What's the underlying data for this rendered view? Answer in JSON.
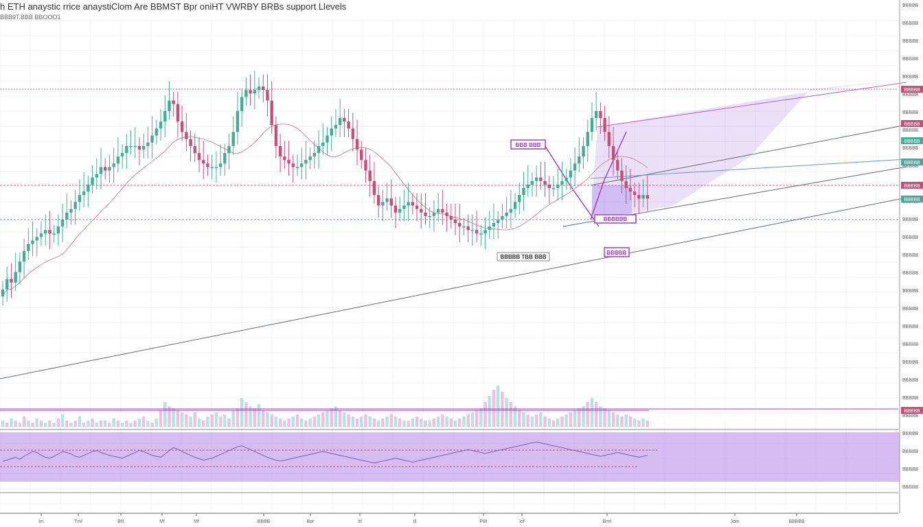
{
  "header": {
    "title": "h ETH anaystic rrice anaystiClom Are BBMST Bpr oniHT VWRBY BRBs support Llevels",
    "subtitle": "BBB9T.BBB BBOOO1"
  },
  "colors": {
    "up": "#4aa89a",
    "down": "#c4507a",
    "accent": "#a040c0",
    "zone": "#c9a5ee",
    "trend": "#606870",
    "resistance": "#d06080",
    "support": "#7090d0"
  },
  "annotations": {
    "label1": "BBB BBB",
    "label2": "BBBBB TBB BBB",
    "label3": "BBBBBB",
    "label4": "BBBBB"
  },
  "price_tags": [
    "BBBBB",
    "BBBBB",
    "BBBBB",
    "BBBBB",
    "BBBBB",
    "BBBBB",
    "BBBBB"
  ],
  "chart_data": {
    "type": "candlestick",
    "price_axis_labels": [
      "BBBBB",
      "BBBBB",
      "BBBBB",
      "BBBBB",
      "BBBBB",
      "BBBBB",
      "BBBBB",
      "BBBBB",
      "BBBBB",
      "BBBBB",
      "BBBBB",
      "BBBBB",
      "BBBBB",
      "BBBBB",
      "BBBBB",
      "BBBBB",
      "BBBBB",
      "BBBBB",
      "BBBBB",
      "BBBBB",
      "BBBBB",
      "BBBBB",
      "BBBBB",
      "BBBBB",
      "BBBBB",
      "BBBBB",
      "BBBBB",
      "BBBBB"
    ],
    "time_axis_labels": [
      "Im",
      "Tmf",
      "BN",
      "Mf",
      "Mf",
      "BBBB",
      "Bor",
      "Itf",
      "Ill",
      "PBI",
      "Iof",
      "Bmf",
      "Jom",
      "BBBBB"
    ],
    "ylim": [
      0,
      100
    ],
    "closes": [
      31,
      34,
      33,
      36,
      39,
      42,
      44,
      45,
      46,
      47,
      48,
      47,
      47,
      49,
      51,
      53,
      54,
      56,
      58,
      59,
      61,
      63,
      64,
      66,
      65,
      66,
      67,
      69,
      70,
      72,
      72,
      72,
      71,
      72,
      73,
      75,
      77,
      79,
      82,
      85,
      84,
      79,
      76,
      74,
      72,
      70,
      68,
      67,
      66,
      66,
      66,
      67,
      70,
      72,
      76,
      82,
      86,
      88,
      87,
      88,
      89,
      88,
      85,
      78,
      72,
      69,
      68,
      67,
      66,
      66,
      67,
      68,
      69,
      70,
      72,
      73,
      75,
      77,
      78,
      80,
      79,
      77,
      74,
      71,
      68,
      65,
      62,
      58,
      55,
      56,
      57,
      55,
      53,
      54,
      55,
      56,
      55,
      54,
      53,
      52,
      52,
      53,
      54,
      53,
      52,
      51,
      50,
      49,
      49,
      48,
      48,
      47,
      47,
      48,
      49,
      50,
      51,
      52,
      53,
      54,
      56,
      58,
      60,
      61,
      62,
      63,
      62,
      61,
      60,
      60,
      61,
      62,
      63,
      65,
      67,
      69,
      72,
      76,
      80,
      82,
      80,
      76,
      72,
      68,
      65,
      62,
      60,
      59,
      58,
      57,
      58,
      57
    ],
    "volumes": [
      3,
      2,
      4,
      3,
      2,
      5,
      3,
      2,
      4,
      3,
      2,
      3,
      2,
      4,
      6,
      3,
      2,
      3,
      5,
      2,
      3,
      4,
      2,
      3,
      3,
      2,
      4,
      3,
      2,
      3,
      2,
      3,
      4,
      5,
      3,
      2,
      4,
      8,
      12,
      10,
      9,
      8,
      7,
      6,
      5,
      7,
      4,
      3,
      5,
      6,
      7,
      5,
      6,
      4,
      8,
      9,
      14,
      12,
      10,
      9,
      11,
      8,
      7,
      6,
      5,
      4,
      3,
      4,
      5,
      6,
      4,
      3,
      4,
      5,
      6,
      7,
      8,
      9,
      10,
      8,
      7,
      6,
      5,
      4,
      5,
      6,
      5,
      4,
      3,
      4,
      5,
      6,
      5,
      4,
      3,
      3,
      4,
      5,
      4,
      3,
      3,
      4,
      5,
      6,
      5,
      4,
      3,
      4,
      5,
      6,
      7,
      8,
      9,
      12,
      15,
      18,
      20,
      17,
      14,
      12,
      10,
      8,
      7,
      6,
      5,
      6,
      7,
      5,
      4,
      3,
      4,
      5,
      6,
      7,
      8,
      9,
      10,
      12,
      14,
      12,
      10,
      9,
      8,
      7,
      6,
      5,
      6,
      5,
      4,
      3,
      4,
      3
    ],
    "oscillator": [
      40,
      42,
      45,
      48,
      44,
      50,
      55,
      60,
      58,
      52,
      48,
      46,
      50,
      55,
      60,
      58,
      55,
      50,
      48,
      52,
      56,
      60,
      62,
      58,
      55,
      52,
      50,
      48,
      46,
      50,
      54,
      58,
      62,
      60,
      56,
      52,
      50,
      48,
      55,
      62,
      68,
      65,
      60,
      56,
      52,
      48,
      45,
      42,
      44,
      46,
      50,
      54,
      58,
      62,
      66,
      70,
      72,
      68,
      64,
      60,
      56,
      52,
      48,
      45,
      42,
      40,
      42,
      44,
      46,
      48,
      50,
      52,
      54,
      56,
      58,
      60,
      58,
      56,
      54,
      52,
      50,
      48,
      46,
      44,
      42,
      40,
      38,
      36,
      38,
      40,
      42,
      44,
      46,
      44,
      42,
      40,
      38,
      40,
      42,
      44,
      46,
      48,
      50,
      52,
      54,
      56,
      58,
      60,
      62,
      64,
      62,
      60,
      58,
      56,
      58,
      60,
      62,
      64,
      66,
      68,
      70,
      72,
      74,
      76,
      78,
      80,
      78,
      76,
      74,
      72,
      70,
      68,
      66,
      64,
      62,
      60,
      58,
      56,
      54,
      52,
      50,
      52,
      54,
      56,
      58,
      56,
      54,
      52,
      50,
      48,
      50,
      52
    ]
  }
}
